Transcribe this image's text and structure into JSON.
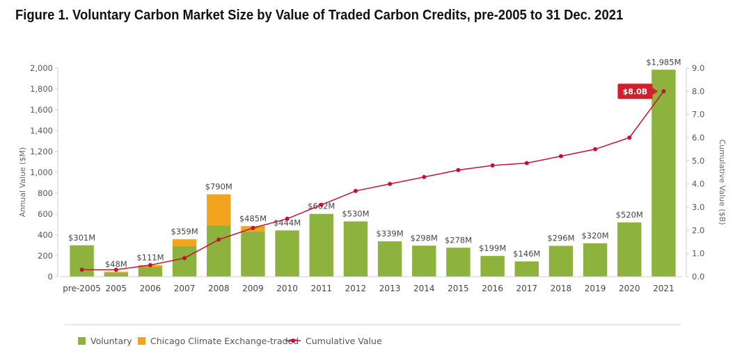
{
  "title": "Figure 1. Voluntary Carbon Market Size by Value of Traded Carbon Credits, pre-2005 to 31 Dec. 2021",
  "chart_data": {
    "type": "bar",
    "categories": [
      "pre-2005",
      "2005",
      "2006",
      "2007",
      "2008",
      "2009",
      "2010",
      "2011",
      "2012",
      "2013",
      "2014",
      "2015",
      "2016",
      "2017",
      "2018",
      "2019",
      "2020",
      "2021"
    ],
    "series": [
      {
        "name": "Voluntary",
        "type": "bar",
        "stacked": true,
        "color": "#8db23d",
        "values": [
          301,
          35,
          90,
          290,
          490,
          435,
          444,
          602,
          530,
          339,
          298,
          278,
          199,
          146,
          296,
          320,
          520,
          1985
        ]
      },
      {
        "name": "Chicago Climate Exchange-traded",
        "type": "bar",
        "stacked": true,
        "color": "#f3a41f",
        "values": [
          0,
          13,
          21,
          69,
          300,
          50,
          0,
          0,
          0,
          0,
          0,
          0,
          0,
          0,
          0,
          0,
          0,
          0
        ]
      },
      {
        "name": "Cumulative Value",
        "type": "line",
        "axis": "right",
        "color": "#c8102e",
        "values": [
          0.3,
          0.3,
          0.5,
          0.8,
          1.6,
          2.1,
          2.5,
          3.1,
          3.7,
          4.0,
          4.3,
          4.6,
          4.8,
          4.9,
          5.2,
          5.5,
          6.0,
          8.0
        ]
      }
    ],
    "bar_labels": [
      "$301M",
      "$48M",
      "$111M",
      "$359M",
      "$790M",
      "$485M",
      "$444M",
      "$602M",
      "$530M",
      "$339M",
      "$298M",
      "$278M",
      "$199M",
      "$146M",
      "$296M",
      "$320M",
      "$520M",
      "$1,985M"
    ],
    "ylabel": "Annual Value ($M)",
    "ylim": [
      0,
      2000
    ],
    "yticks": [
      0,
      200,
      400,
      600,
      800,
      1000,
      1200,
      1400,
      1600,
      1800,
      2000
    ],
    "ytick_labels": [
      "0",
      "200",
      "400",
      "600",
      "800",
      "1,000",
      "1,200",
      "1,400",
      "1,600",
      "1,800",
      "2,000"
    ],
    "y2label": "Cumulative Value ($B)",
    "y2lim": [
      0,
      9
    ],
    "y2ticks": [
      0,
      1,
      2,
      3,
      4,
      5,
      6,
      7,
      8,
      9
    ],
    "y2tick_labels": [
      "0.0",
      "1.0",
      "2.0",
      "3.0",
      "4.0",
      "5.0",
      "6.0",
      "7.0",
      "8.0",
      "9.0"
    ],
    "annotation": "$8.0B",
    "legend_position": "bottom",
    "grid": false
  }
}
